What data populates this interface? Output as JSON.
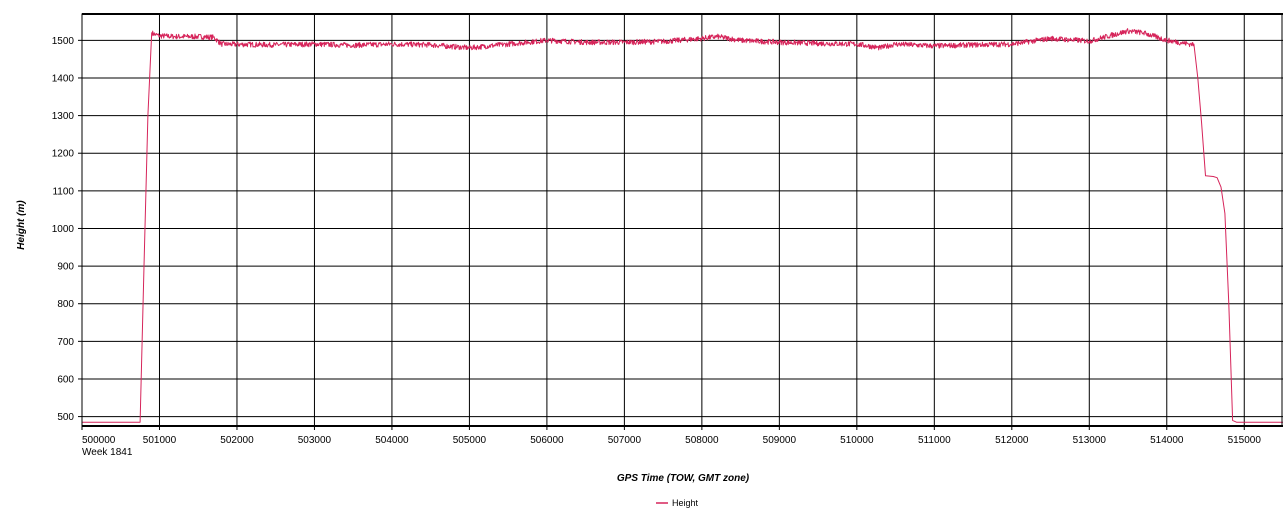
{
  "chart_data": {
    "type": "line",
    "title": "",
    "xlabel": "GPS Time (TOW, GMT zone)",
    "ylabel": "Height (m)",
    "x_sub_label": "Week 1841",
    "xlim": [
      500000,
      515500
    ],
    "ylim": [
      475,
      1570
    ],
    "x_ticks": [
      500000,
      501000,
      502000,
      503000,
      504000,
      505000,
      506000,
      507000,
      508000,
      509000,
      510000,
      511000,
      512000,
      513000,
      514000,
      515000
    ],
    "y_ticks": [
      500,
      600,
      700,
      800,
      900,
      1000,
      1100,
      1200,
      1300,
      1400,
      1500
    ],
    "grid": true,
    "legend_position": "bottom-center",
    "series": [
      {
        "name": "Height",
        "color": "#d6245a",
        "noisy_plateau": true,
        "x": [
          500000,
          500700,
          500750,
          500800,
          500850,
          500900,
          500950,
          501000,
          501200,
          501500,
          501700,
          501800,
          502500,
          503000,
          503500,
          504000,
          504500,
          505000,
          505500,
          506000,
          506500,
          507000,
          507500,
          508000,
          508200,
          508500,
          509000,
          509500,
          510000,
          510300,
          510500,
          511000,
          511500,
          512000,
          512500,
          513000,
          513500,
          513700,
          514000,
          514300,
          514350,
          514400,
          514450,
          514500,
          514600,
          514650,
          514700,
          514750,
          514800,
          514850,
          514900,
          515000,
          515500
        ],
        "y": [
          485,
          485,
          485,
          900,
          1300,
          1520,
          1515,
          1512,
          1510,
          1510,
          1508,
          1490,
          1488,
          1490,
          1487,
          1490,
          1488,
          1480,
          1490,
          1500,
          1495,
          1495,
          1497,
          1505,
          1510,
          1500,
          1495,
          1492,
          1490,
          1480,
          1490,
          1485,
          1488,
          1490,
          1505,
          1498,
          1525,
          1520,
          1500,
          1490,
          1490,
          1400,
          1280,
          1140,
          1138,
          1135,
          1110,
          1040,
          800,
          490,
          485,
          485,
          485
        ]
      }
    ]
  }
}
